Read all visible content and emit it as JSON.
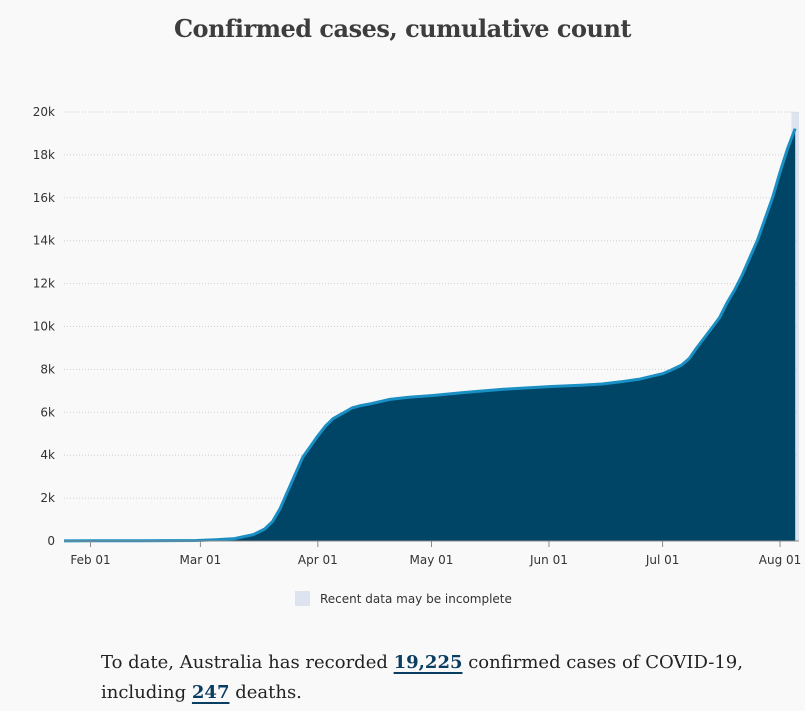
{
  "chart_data": {
    "type": "area",
    "title": "Confirmed cases, cumulative count",
    "xlabel": "",
    "ylabel": "",
    "x_range": [
      "2020-01-25",
      "2020-08-06"
    ],
    "ylim": [
      0,
      20000
    ],
    "y_ticks": [
      0,
      2000,
      4000,
      6000,
      8000,
      10000,
      12000,
      14000,
      16000,
      18000,
      20000
    ],
    "y_tick_labels": [
      "0",
      "2k",
      "4k",
      "6k",
      "8k",
      "10k",
      "12k",
      "14k",
      "16k",
      "18k",
      "20k"
    ],
    "x_ticks": [
      "2020-02-01",
      "2020-03-01",
      "2020-04-01",
      "2020-05-01",
      "2020-06-01",
      "2020-07-01",
      "2020-08-01"
    ],
    "x_tick_labels": [
      "Feb 01",
      "Mar 01",
      "Apr 01",
      "May 01",
      "Jun 01",
      "Jul 01",
      "Aug 01"
    ],
    "grid": true,
    "incomplete_range": [
      "2020-08-04",
      "2020-08-06"
    ],
    "series": [
      {
        "color": "#004466",
        "line_color": "#1a8fc4",
        "points": [
          [
            "2020-01-25",
            4
          ],
          [
            "2020-02-01",
            12
          ],
          [
            "2020-02-15",
            15
          ],
          [
            "2020-02-29",
            25
          ],
          [
            "2020-03-05",
            60
          ],
          [
            "2020-03-10",
            110
          ],
          [
            "2020-03-15",
            300
          ],
          [
            "2020-03-18",
            560
          ],
          [
            "2020-03-20",
            900
          ],
          [
            "2020-03-22",
            1500
          ],
          [
            "2020-03-24",
            2300
          ],
          [
            "2020-03-26",
            3100
          ],
          [
            "2020-03-28",
            3900
          ],
          [
            "2020-03-30",
            4400
          ],
          [
            "2020-04-01",
            4900
          ],
          [
            "2020-04-03",
            5350
          ],
          [
            "2020-04-05",
            5700
          ],
          [
            "2020-04-08",
            6000
          ],
          [
            "2020-04-10",
            6200
          ],
          [
            "2020-04-12",
            6300
          ],
          [
            "2020-04-15",
            6400
          ],
          [
            "2020-04-20",
            6600
          ],
          [
            "2020-04-25",
            6700
          ],
          [
            "2020-05-01",
            6780
          ],
          [
            "2020-05-10",
            6930
          ],
          [
            "2020-05-20",
            7070
          ],
          [
            "2020-06-01",
            7200
          ],
          [
            "2020-06-10",
            7270
          ],
          [
            "2020-06-15",
            7320
          ],
          [
            "2020-06-20",
            7420
          ],
          [
            "2020-06-25",
            7550
          ],
          [
            "2020-07-01",
            7800
          ],
          [
            "2020-07-03",
            7950
          ],
          [
            "2020-07-06",
            8200
          ],
          [
            "2020-07-08",
            8500
          ],
          [
            "2020-07-10",
            9000
          ],
          [
            "2020-07-13",
            9700
          ],
          [
            "2020-07-16",
            10400
          ],
          [
            "2020-07-18",
            11100
          ],
          [
            "2020-07-20",
            11700
          ],
          [
            "2020-07-22",
            12400
          ],
          [
            "2020-07-24",
            13200
          ],
          [
            "2020-07-26",
            14000
          ],
          [
            "2020-07-28",
            15000
          ],
          [
            "2020-07-30",
            16000
          ],
          [
            "2020-08-01",
            17200
          ],
          [
            "2020-08-03",
            18300
          ],
          [
            "2020-08-05",
            19225
          ]
        ]
      }
    ],
    "legend": [
      {
        "label": "Recent data may be incomplete",
        "color": "#dde3ef"
      }
    ]
  },
  "summary": {
    "text_before": "To date, Australia has recorded ",
    "cases": "19,225",
    "text_middle": " confirmed cases of COVID-19, including ",
    "deaths": "247",
    "text_after": " deaths."
  }
}
